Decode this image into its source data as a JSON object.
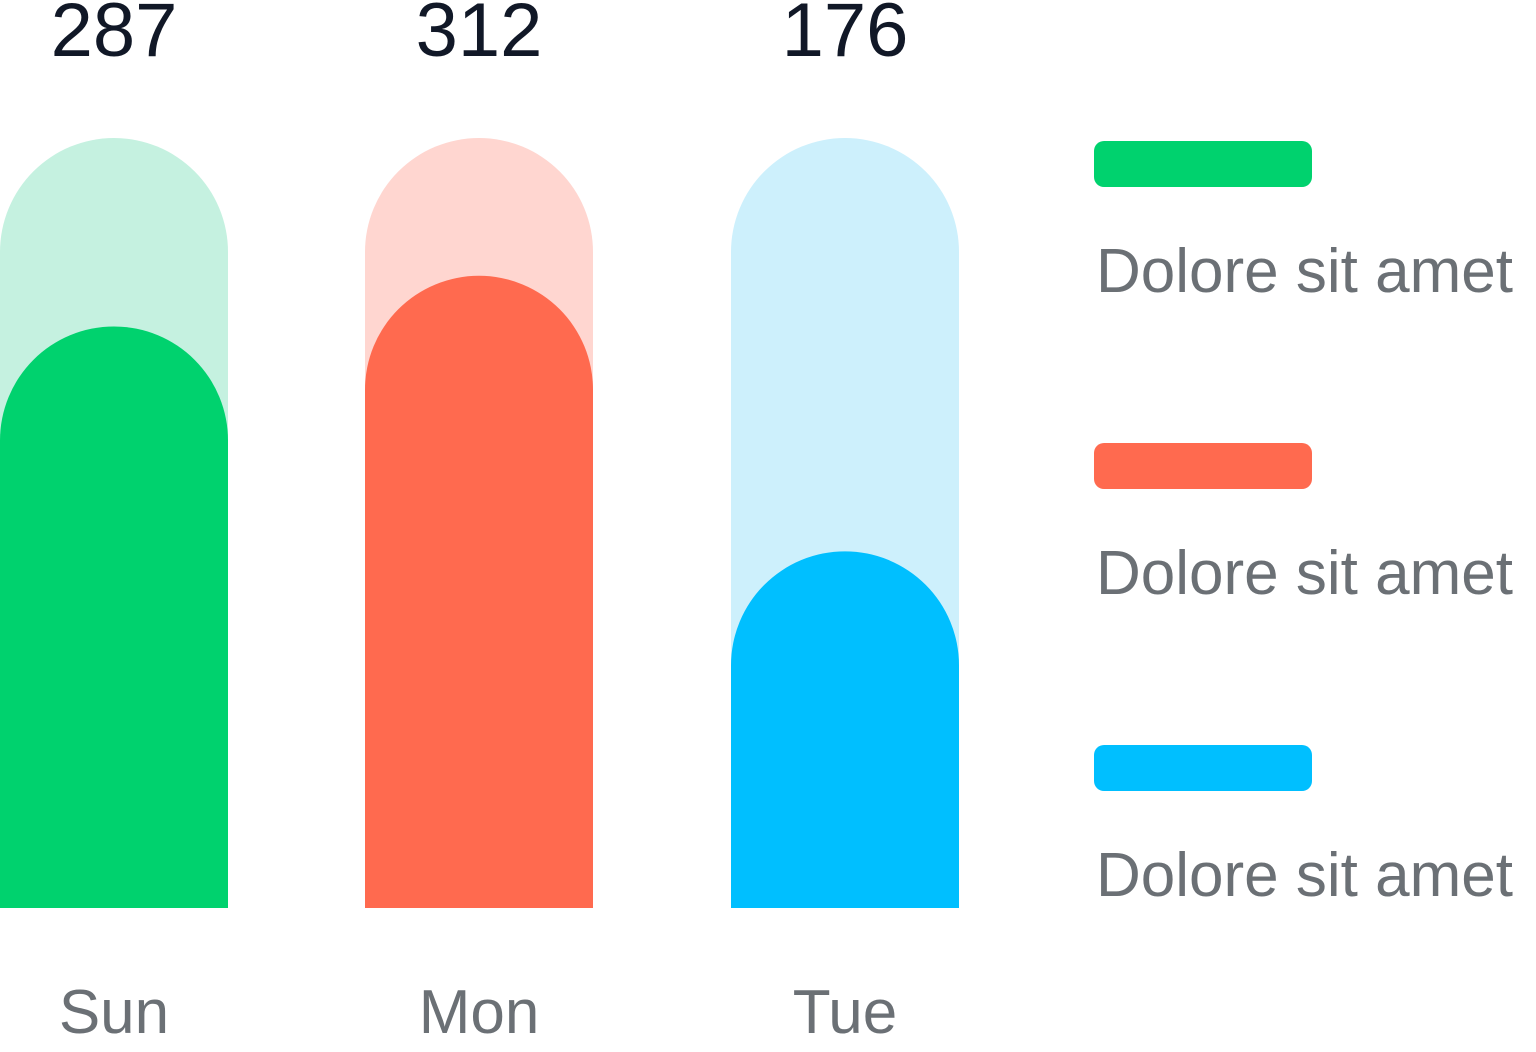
{
  "chart_data": {
    "type": "bar",
    "categories": [
      "Sun",
      "Mon",
      "Tue"
    ],
    "values": [
      287,
      312,
      176
    ],
    "data_labels": [
      "287",
      "312",
      "176"
    ],
    "colors": [
      "#00d26e",
      "#ff6a4f",
      "#00bfff"
    ],
    "track_colors": [
      "#c5f1e0",
      "#ffd6d0",
      "#cdf0fc"
    ],
    "ylim": [
      0,
      380
    ],
    "legend": [
      {
        "label": "Dolore sit amet",
        "color": "#00d26e"
      },
      {
        "label": "Dolore sit amet",
        "color": "#ff6a4f"
      },
      {
        "label": "Dolore sit amet",
        "color": "#00bfff"
      }
    ],
    "legend_placement": "right",
    "grid": false,
    "title": "",
    "xlabel": "",
    "ylabel": ""
  }
}
